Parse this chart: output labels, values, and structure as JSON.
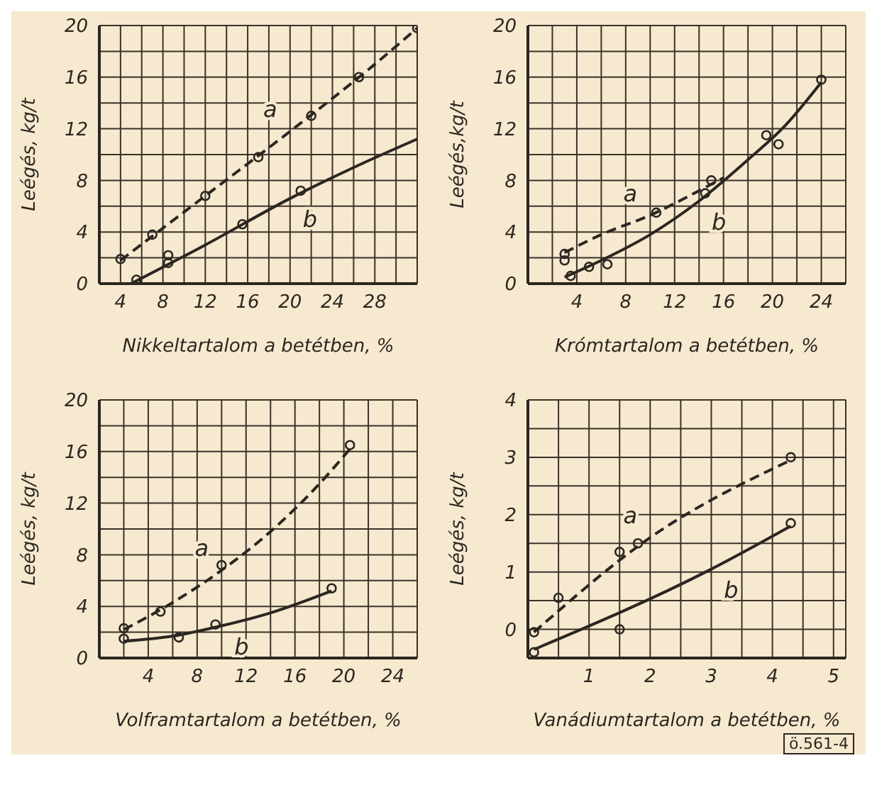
{
  "chart_data": [
    {
      "type": "line",
      "xlabel": "Nikkeltartalom a betétben, %",
      "ylabel": "Leégés, kg/t",
      "xlim": [
        2,
        32
      ],
      "xticks": [
        {
          "value": 2,
          "label": null
        },
        4,
        {
          "value": 6,
          "label": null
        },
        8,
        {
          "value": 10,
          "label": null
        },
        12,
        {
          "value": 14,
          "label": null
        },
        16,
        {
          "value": 18,
          "label": null
        },
        20,
        {
          "value": 22,
          "label": null
        },
        24,
        {
          "value": 26,
          "label": null
        },
        28,
        {
          "value": 30,
          "label": null
        },
        {
          "value": 32,
          "label": null
        }
      ],
      "ylim": [
        0,
        20
      ],
      "yticks": [
        0,
        {
          "value": 2,
          "label": null
        },
        4,
        {
          "value": 6,
          "label": null
        },
        8,
        {
          "value": 10,
          "label": null
        },
        12,
        {
          "value": 14,
          "label": null
        },
        16,
        {
          "value": 18,
          "label": null
        },
        20
      ],
      "grid": true,
      "series": [
        {
          "type": "line",
          "name": "a",
          "color": "#2b2620",
          "line_style": "dashed",
          "marker": "none",
          "x": [
            4,
            12,
            20,
            28,
            32
          ],
          "values": [
            1.8,
            6.8,
            11.8,
            17,
            19.8
          ]
        },
        {
          "type": "line",
          "name": "b",
          "color": "#2b2620",
          "line_style": "solid",
          "marker": "none",
          "x": [
            5,
            12,
            20,
            26,
            32
          ],
          "values": [
            0,
            3,
            6.6,
            9,
            11.2
          ]
        },
        {
          "type": "scatter",
          "color": "#2b2620",
          "marker": "circle",
          "x": [
            4,
            7,
            12,
            17,
            22,
            26.5,
            32
          ],
          "values": [
            1.9,
            3.8,
            6.8,
            9.8,
            13,
            16,
            19.8
          ]
        },
        {
          "type": "scatter",
          "color": "#2b2620",
          "marker": "circle",
          "x": [
            5.5,
            8.5,
            8.5,
            15.5,
            21
          ],
          "values": [
            0.3,
            2.2,
            1.6,
            4.6,
            7.2
          ]
        }
      ]
    },
    {
      "type": "line",
      "xlabel": "Krómtartalom a betétben, %",
      "ylabel": "Leégés,kg/t",
      "xlim": [
        0,
        26
      ],
      "xticks": [
        {
          "value": 0,
          "label": null
        },
        {
          "value": 2,
          "label": null
        },
        4,
        {
          "value": 6,
          "label": null
        },
        8,
        {
          "value": 10,
          "label": null
        },
        12,
        {
          "value": 14,
          "label": null
        },
        16,
        {
          "value": 18,
          "label": null
        },
        20,
        {
          "value": 22,
          "label": null
        },
        24,
        {
          "value": 26,
          "label": null
        }
      ],
      "ylim": [
        0,
        20
      ],
      "yticks": [
        0,
        {
          "value": 2,
          "label": null
        },
        4,
        {
          "value": 6,
          "label": null
        },
        8,
        {
          "value": 10,
          "label": null
        },
        12,
        {
          "value": 14,
          "label": null
        },
        16,
        {
          "value": 18,
          "label": null
        },
        20
      ],
      "grid": true,
      "series": [
        {
          "type": "line",
          "name": "a",
          "color": "#2b2620",
          "line_style": "dashed",
          "marker": "none",
          "x": [
            3,
            6,
            10,
            14,
            16
          ],
          "values": [
            2.4,
            3.8,
            5.3,
            7.2,
            8.2
          ]
        },
        {
          "type": "line",
          "name": "b",
          "color": "#2b2620",
          "line_style": "solid",
          "marker": "none",
          "x": [
            3,
            6,
            10,
            14,
            18,
            21,
            24
          ],
          "values": [
            0.5,
            1.8,
            3.8,
            6.4,
            9.6,
            12.2,
            15.6
          ]
        },
        {
          "type": "scatter",
          "color": "#2b2620",
          "marker": "circle",
          "x": [
            3,
            10.5,
            15
          ],
          "values": [
            2.3,
            5.5,
            8
          ]
        },
        {
          "type": "scatter",
          "color": "#2b2620",
          "marker": "circle",
          "x": [
            3,
            3.5,
            5,
            6.5,
            14.5,
            19.5,
            20.5,
            24
          ],
          "values": [
            1.8,
            0.6,
            1.3,
            1.5,
            7,
            11.5,
            10.8,
            15.8
          ]
        }
      ]
    },
    {
      "type": "line",
      "xlabel": "Volframtartalom a betétben, %",
      "ylabel": "Leégés, kg/t",
      "xlim": [
        0,
        26
      ],
      "xticks": [
        {
          "value": 0,
          "label": null
        },
        {
          "value": 2,
          "label": null
        },
        4,
        {
          "value": 6,
          "label": null
        },
        8,
        {
          "value": 10,
          "label": null
        },
        12,
        {
          "value": 14,
          "label": null
        },
        16,
        {
          "value": 18,
          "label": null
        },
        20,
        {
          "value": 22,
          "label": null
        },
        24,
        {
          "value": 26,
          "label": null
        }
      ],
      "ylim": [
        0,
        20
      ],
      "yticks": [
        0,
        {
          "value": 2,
          "label": null
        },
        4,
        {
          "value": 6,
          "label": null
        },
        8,
        {
          "value": 10,
          "label": null
        },
        12,
        {
          "value": 14,
          "label": null
        },
        16,
        {
          "value": 18,
          "label": null
        },
        20
      ],
      "grid": true,
      "series": [
        {
          "type": "line",
          "name": "a",
          "color": "#2b2620",
          "line_style": "dashed",
          "marker": "none",
          "x": [
            2,
            6,
            10,
            14,
            18,
            20.5
          ],
          "values": [
            2.2,
            4.3,
            6.8,
            9.8,
            13.5,
            16.2
          ]
        },
        {
          "type": "line",
          "name": "b",
          "color": "#2b2620",
          "line_style": "solid",
          "marker": "none",
          "x": [
            2,
            6,
            10,
            14,
            19
          ],
          "values": [
            1.3,
            1.7,
            2.5,
            3.5,
            5.2
          ]
        },
        {
          "type": "scatter",
          "color": "#2b2620",
          "marker": "circle",
          "x": [
            2,
            5,
            10,
            20.5
          ],
          "values": [
            2.3,
            3.6,
            7.2,
            16.5
          ]
        },
        {
          "type": "scatter",
          "color": "#2b2620",
          "marker": "circle",
          "x": [
            2,
            6.5,
            9.5,
            19
          ],
          "values": [
            1.5,
            1.6,
            2.6,
            5.4
          ]
        }
      ]
    },
    {
      "type": "line",
      "xlabel": "Vanádiumtartalom a betétben, %",
      "ylabel": "Leégés, kg/t",
      "xlim": [
        0,
        5.2
      ],
      "xticks": [
        {
          "value": 0,
          "label": null
        },
        {
          "value": 0.5,
          "label": null
        },
        1,
        {
          "value": 1.5,
          "label": null
        },
        2,
        {
          "value": 2.5,
          "label": null
        },
        3,
        {
          "value": 3.5,
          "label": null
        },
        4,
        {
          "value": 4.5,
          "label": null
        },
        5
      ],
      "ylim": [
        -0.5,
        4
      ],
      "yticks": [
        {
          "value": -0.5,
          "label": null
        },
        0,
        {
          "value": 0.5,
          "label": null
        },
        1,
        {
          "value": 1.5,
          "label": null
        },
        2,
        {
          "value": 2.5,
          "label": null
        },
        3,
        {
          "value": 3.5,
          "label": null
        },
        4
      ],
      "grid": true,
      "annotations": [
        "ö.561-4"
      ],
      "series": [
        {
          "type": "line",
          "name": "a",
          "color": "#2b2620",
          "line_style": "dashed",
          "marker": "none",
          "x": [
            0.1,
            2,
            4.3
          ],
          "values": [
            -0.05,
            1.6,
            2.95
          ]
        },
        {
          "type": "line",
          "name": "b",
          "color": "#2b2620",
          "line_style": "solid",
          "marker": "none",
          "x": [
            0.1,
            3,
            4.3
          ],
          "values": [
            -0.35,
            1.05,
            1.8
          ]
        },
        {
          "type": "scatter",
          "color": "#2b2620",
          "marker": "circle",
          "x": [
            0.1,
            0.5,
            1.5,
            1.8,
            4.3
          ],
          "values": [
            -0.05,
            0.55,
            1.35,
            1.5,
            3
          ]
        },
        {
          "type": "scatter",
          "color": "#2b2620",
          "marker": "circle",
          "x": [
            0.1,
            1.5,
            4.3
          ],
          "values": [
            -0.4,
            0,
            1.85
          ]
        }
      ]
    }
  ]
}
